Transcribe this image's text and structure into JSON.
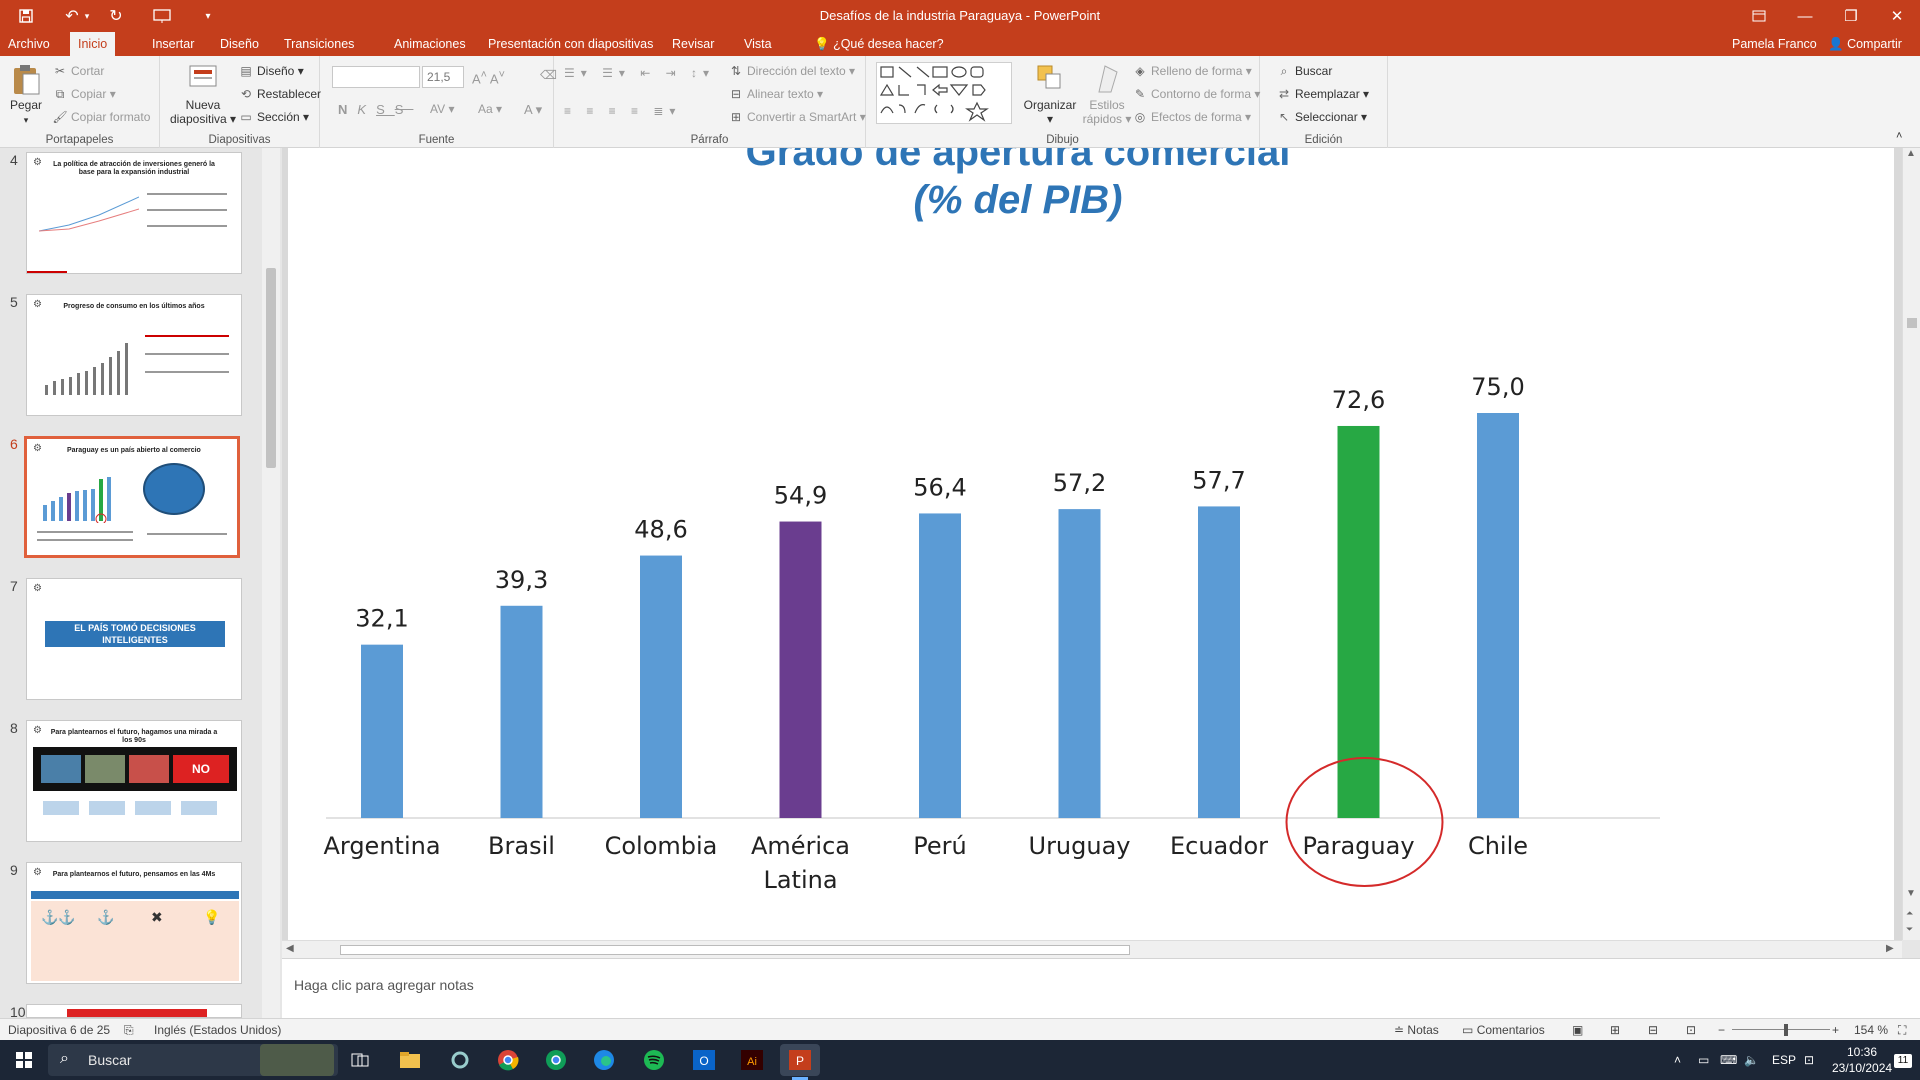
{
  "window": {
    "title": "Desafíos de la industria Paraguaya - PowerPoint",
    "user": "Pamela Franco",
    "share_label": "Compartir"
  },
  "tabs": [
    "Archivo",
    "Inicio",
    "Insertar",
    "Diseño",
    "Transiciones",
    "Animaciones",
    "Presentación con diapositivas",
    "Revisar",
    "Vista"
  ],
  "tell_me": "¿Qué desea hacer?",
  "ribbon": {
    "clipboard": {
      "paste": "Pegar",
      "cut": "Cortar",
      "copy": "Copiar",
      "format_painter": "Copiar formato",
      "group": "Portapapeles"
    },
    "slides": {
      "new_slide_1": "Nueva",
      "new_slide_2": "diapositiva",
      "layout": "Diseño",
      "reset": "Restablecer",
      "section": "Sección",
      "group": "Diapositivas"
    },
    "font": {
      "size": "21,5",
      "group": "Fuente"
    },
    "paragraph": {
      "text_direction": "Dirección del texto",
      "align_text": "Alinear texto",
      "smartart": "Convertir a SmartArt",
      "group": "Párrafo"
    },
    "drawing": {
      "arrange": "Organizar",
      "quick_styles_1": "Estilos",
      "quick_styles_2": "rápidos",
      "shape_fill": "Relleno de forma",
      "shape_outline": "Contorno de forma",
      "shape_effects": "Efectos de forma",
      "group": "Dibujo"
    },
    "editing": {
      "find": "Buscar",
      "replace": "Reemplazar",
      "select": "Seleccionar",
      "group": "Edición"
    }
  },
  "thumbnails": [
    {
      "num": "4",
      "title": "La política de atracción de inversiones generó la base para la expansión industrial"
    },
    {
      "num": "5",
      "title": "Progreso de consumo en los últimos años"
    },
    {
      "num": "6",
      "title": "Paraguay es un país abierto al comercio"
    },
    {
      "num": "7",
      "title": "EL PAÍS TOMÓ DECISIONES INTELIGENTES"
    },
    {
      "num": "8",
      "title": "Para plantearnos el futuro, hagamos una mirada a los 90s"
    },
    {
      "num": "9",
      "title": "Para plantearnos el futuro, pensamos en las 4Ms"
    },
    {
      "num": "10",
      "title": ""
    }
  ],
  "notes_placeholder": "Haga clic para agregar notas",
  "status": {
    "slide": "Diapositiva 6 de 25",
    "language": "Inglés (Estados Unidos)",
    "notes": "Notas",
    "comments": "Comentarios",
    "zoom": "154 %"
  },
  "taskbar": {
    "search": "Buscar",
    "lang": "ESP",
    "time": "10:36",
    "date": "23/10/2024",
    "badge": "11"
  },
  "chart_data": {
    "type": "bar",
    "title": "Grado de apertura comercial",
    "subtitle": "(% del PIB)",
    "categories": [
      "Argentina",
      "Brasil",
      "Colombia",
      "América Latina",
      "Perú",
      "Uruguay",
      "Ecuador",
      "Paraguay",
      "Chile"
    ],
    "values": [
      32.1,
      39.3,
      48.6,
      54.9,
      56.4,
      57.2,
      57.7,
      72.6,
      75.0
    ],
    "value_labels": [
      "32,1",
      "39,3",
      "48,6",
      "54,9",
      "56,4",
      "57,2",
      "57,7",
      "72,6",
      "75,0"
    ],
    "colors": [
      "#5b9bd5",
      "#5b9bd5",
      "#5b9bd5",
      "#6a3d8f",
      "#5b9bd5",
      "#5b9bd5",
      "#5b9bd5",
      "#27a844",
      "#5b9bd5"
    ],
    "highlight": "Paraguay",
    "highlight_color": "#d42a2a",
    "ylim": [
      0,
      80
    ]
  }
}
